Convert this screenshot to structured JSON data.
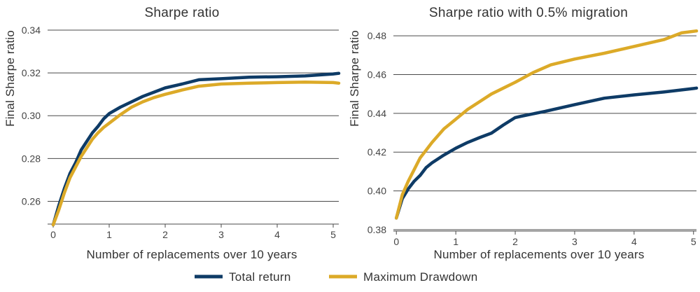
{
  "colors": {
    "total_return": "#0e3b66",
    "max_drawdown": "#dcaa28",
    "grid": "#4a4a4a"
  },
  "legend": [
    {
      "label": "Total return",
      "color": "#0e3b66"
    },
    {
      "label": "Maximum Drawdown",
      "color": "#dcaa28"
    }
  ],
  "chart_data": [
    {
      "type": "line",
      "title": "Sharpe ratio",
      "xlabel": "Number of replacements over 10 years",
      "ylabel": "Final Sharpe ratio",
      "xlim": [
        -0.1,
        5.1
      ],
      "ylim": [
        0.25,
        0.34
      ],
      "xticks": [
        "0",
        "1",
        "2",
        "3",
        "4",
        "5"
      ],
      "yticks": [
        "0.26",
        "0.28",
        "0.30",
        "0.32",
        "0.34"
      ],
      "grid": "horizontal",
      "series": [
        {
          "name": "Total return",
          "x": [
            0,
            0.1,
            0.2,
            0.3,
            0.4,
            0.5,
            0.6,
            0.7,
            0.8,
            0.9,
            1.0,
            1.2,
            1.4,
            1.6,
            1.8,
            2.0,
            2.3,
            2.6,
            3.0,
            3.5,
            4.0,
            4.5,
            5.0,
            5.1
          ],
          "y": [
            0.249,
            0.258,
            0.266,
            0.273,
            0.278,
            0.284,
            0.288,
            0.292,
            0.295,
            0.2985,
            0.301,
            0.304,
            0.3065,
            0.309,
            0.311,
            0.313,
            0.3148,
            0.3168,
            0.3173,
            0.318,
            0.3182,
            0.3186,
            0.3195,
            0.3198
          ]
        },
        {
          "name": "Maximum Drawdown",
          "x": [
            0,
            0.1,
            0.2,
            0.3,
            0.4,
            0.5,
            0.6,
            0.7,
            0.8,
            0.9,
            1.0,
            1.2,
            1.4,
            1.6,
            1.8,
            2.0,
            2.3,
            2.6,
            3.0,
            3.5,
            4.0,
            4.5,
            5.0,
            5.1
          ],
          "y": [
            0.249,
            0.256,
            0.264,
            0.271,
            0.276,
            0.281,
            0.285,
            0.289,
            0.292,
            0.2945,
            0.2965,
            0.3005,
            0.304,
            0.3065,
            0.3085,
            0.31,
            0.312,
            0.3138,
            0.3148,
            0.3152,
            0.3155,
            0.3157,
            0.3155,
            0.3152
          ]
        }
      ]
    },
    {
      "type": "line",
      "title": "Sharpe ratio with 0.5% migration",
      "xlabel": "Number of replacements over 10 years",
      "ylabel": "Final Sharpe ratio",
      "xlim": [
        -0.05,
        5.05
      ],
      "ylim": [
        0.38,
        0.484
      ],
      "xticks": [
        "0",
        "1",
        "2",
        "3",
        "4",
        "5"
      ],
      "yticks": [
        "0.38",
        "0.40",
        "0.42",
        "0.44",
        "0.46",
        "0.48"
      ],
      "grid": "horizontal",
      "series": [
        {
          "name": "Total return",
          "x": [
            0,
            0.1,
            0.2,
            0.3,
            0.4,
            0.5,
            0.6,
            0.8,
            1.0,
            1.2,
            1.4,
            1.6,
            1.8,
            2.0,
            2.1,
            2.5,
            3.0,
            3.5,
            4.0,
            4.5,
            5.0,
            5.05
          ],
          "y": [
            0.386,
            0.396,
            0.401,
            0.405,
            0.408,
            0.412,
            0.4145,
            0.4185,
            0.422,
            0.425,
            0.4275,
            0.4298,
            0.434,
            0.4378,
            0.4385,
            0.441,
            0.4445,
            0.4478,
            0.4495,
            0.451,
            0.4528,
            0.453
          ]
        },
        {
          "name": "Maximum Drawdown",
          "x": [
            0,
            0.1,
            0.2,
            0.3,
            0.4,
            0.5,
            0.6,
            0.8,
            1.0,
            1.2,
            1.4,
            1.6,
            1.8,
            2.0,
            2.3,
            2.6,
            3.0,
            3.5,
            4.0,
            4.5,
            4.8,
            5.05
          ],
          "y": [
            0.386,
            0.398,
            0.405,
            0.411,
            0.417,
            0.421,
            0.425,
            0.432,
            0.437,
            0.442,
            0.446,
            0.45,
            0.453,
            0.456,
            0.461,
            0.465,
            0.468,
            0.471,
            0.4745,
            0.478,
            0.4815,
            0.4825
          ]
        }
      ]
    }
  ]
}
